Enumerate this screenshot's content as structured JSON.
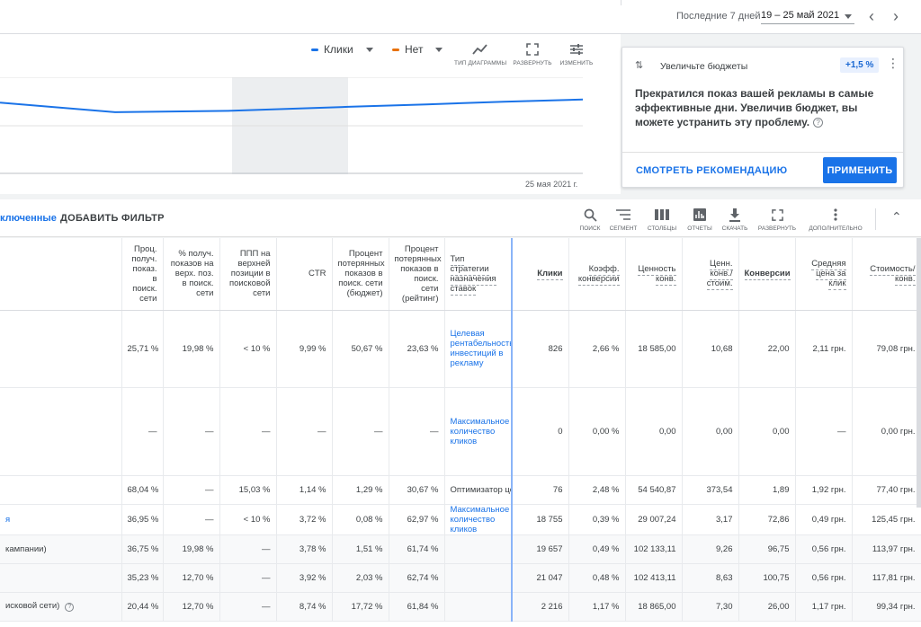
{
  "topbar": {
    "period_label": "Последние 7 дней",
    "period_value": "19 – 25 май 2021"
  },
  "chart": {
    "legend": [
      {
        "label": "Клики",
        "color": "#1a73e8"
      },
      {
        "label": "Нет",
        "color": "#e8710a"
      }
    ],
    "tools": [
      {
        "label": "ТИП ДИАГРАММЫ",
        "icon": "chart-type-icon"
      },
      {
        "label": "РАЗВЕРНУТЬ",
        "icon": "expand-icon"
      },
      {
        "label": "ИЗМЕНИТЬ",
        "icon": "adjust-icon"
      }
    ],
    "date_label": "25 мая 2021 г."
  },
  "chart_data": {
    "type": "line",
    "series": [
      {
        "name": "Клики",
        "values": [
          2950,
          2560,
          2620,
          2780,
          2880,
          2990,
          3080
        ]
      }
    ],
    "ylim": [
      0,
      4000
    ],
    "grid": true
  },
  "recommendation": {
    "title": "Увеличьте бюджеты",
    "badge": "+1,5 %",
    "message": "Прекратился показ вашей рекламы в самые эффективные дни. Увеличив бюджет, вы можете устранить эту проблему.",
    "see_label": "СМОТРЕТЬ РЕКОМЕНДАЦИЮ",
    "apply_label": "ПРИМЕНИТЬ"
  },
  "filterbar": {
    "excluded_label": "ключенные",
    "add_filter_label": "ДОБАВИТЬ ФИЛЬТР",
    "tools": [
      {
        "label": "ПОИСК",
        "icon": "search-icon"
      },
      {
        "label": "СЕГМЕНТ",
        "icon": "segment-icon"
      },
      {
        "label": "СТОЛБЦЫ",
        "icon": "columns-icon"
      },
      {
        "label": "ОТЧЕТЫ",
        "icon": "reports-icon"
      },
      {
        "label": "СКАЧАТЬ",
        "icon": "download-icon"
      },
      {
        "label": "РАЗВЕРНУТЬ",
        "icon": "expand-icon"
      },
      {
        "label": "ДОПОЛНИТЕЛЬНО",
        "icon": "more-icon"
      }
    ]
  },
  "table": {
    "headers": [
      "",
      "Проц. получ. показ. в поиск. сети",
      "% получ. показов на верх. поз. в поиск. сети",
      "ППП на верхней позиции в поисковой сети",
      "CTR",
      "Процент потерянных показов в поиск. сети (бюджет)",
      "Процент потерянных показов в поиск. сети (рейтинг)",
      "Тип стратегии назначения ставок",
      "Клики",
      "Коэфф. конверсии",
      "Ценность конв.",
      "Ценн. конв./ стоим.",
      "Конверсии",
      "Средняя цена за клик",
      "Стоимость/ конв."
    ],
    "rows": [
      {
        "name": "",
        "cells": [
          "25,71 %",
          "19,98 %",
          "< 10 %",
          "9,99 %",
          "50,67 %",
          "23,63 %",
          "Целевая рентабельность инвестиций в рекламу",
          "826",
          "2,66 %",
          "18 585,00",
          "10,68",
          "22,00",
          "2,11 грн.",
          "79,08 грн."
        ]
      },
      {
        "name": "",
        "cells": [
          "—",
          "—",
          "—",
          "—",
          "—",
          "—",
          "Максимальное количество кликов",
          "0",
          "0,00 %",
          "0,00",
          "0,00",
          "0,00",
          "—",
          "0,00 грн."
        ]
      },
      {
        "name": "",
        "cells": [
          "68,04 %",
          "—",
          "15,03 %",
          "1,14 %",
          "1,29 %",
          "30,67 %",
          "Оптимизатор цен",
          "76",
          "2,48 %",
          "54 540,87",
          "373,54",
          "1,89",
          "1,92 грн.",
          "77,40 грн."
        ]
      },
      {
        "name": "я",
        "cells": [
          "36,95 %",
          "—",
          "< 10 %",
          "3,72 %",
          "0,08 %",
          "62,97 %",
          "Максимальное количество кликов",
          "18 755",
          "0,39 %",
          "29 007,24",
          "3,17",
          "72,86",
          "0,49 грн.",
          "125,45 грн."
        ]
      },
      {
        "name": "кампании)",
        "cells": [
          "36,75 %",
          "19,98 %",
          "—",
          "3,78 %",
          "1,51 %",
          "61,74 %",
          "",
          "19 657",
          "0,49 %",
          "102 133,11",
          "9,26",
          "96,75",
          "0,56 грн.",
          "113,97 грн."
        ]
      },
      {
        "name": "",
        "cells": [
          "35,23 %",
          "12,70 %",
          "—",
          "3,92 %",
          "2,03 %",
          "62,74 %",
          "",
          "21 047",
          "0,48 %",
          "102 413,11",
          "8,63",
          "100,75",
          "0,56 грн.",
          "117,81 грн."
        ]
      },
      {
        "name": "исковой сети)",
        "cells": [
          "20,44 %",
          "12,70 %",
          "—",
          "8,74 %",
          "17,72 %",
          "61,84 %",
          "",
          "2 216",
          "1,17 %",
          "18 865,00",
          "7,30",
          "26,00",
          "1,17 грн.",
          "99,34 грн."
        ]
      }
    ]
  }
}
